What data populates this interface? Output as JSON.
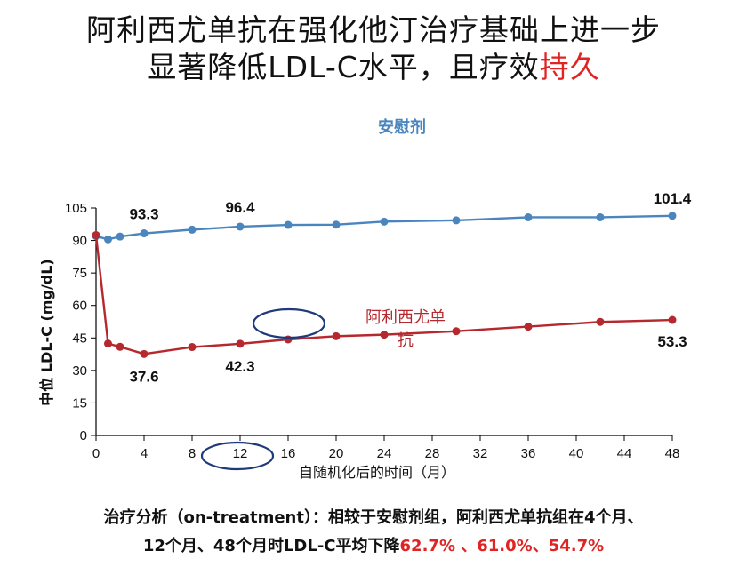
{
  "title": {
    "line1": "阿利西尤单抗在强化他汀治疗基础上进一步",
    "line2_main": "显著降低LDL-C水平，且疗效",
    "line2_accent": "持久"
  },
  "footer": {
    "line1": "治疗分析（on-treatment）：相较于安慰剂组，阿利西尤单抗组在4个月、",
    "line2_main": "12个月、48个月时LDL-C平均下降",
    "line2_values": "62.7% 、61.0%、54.7%"
  },
  "colors": {
    "placebo": "#4a86bd",
    "alirocumab": "#b5282e",
    "accent": "#e02424",
    "ellipse": "#1f3a7a"
  },
  "chart_data": {
    "type": "line",
    "title": "",
    "xlabel": "自随机化后的时间（月）",
    "ylabel": "中位 LDL-C (mg/dL)",
    "xlim": [
      0,
      48
    ],
    "ylim": [
      0,
      105
    ],
    "xticks": [
      0,
      4,
      8,
      12,
      16,
      20,
      24,
      28,
      32,
      36,
      40,
      44,
      48
    ],
    "yticks": [
      0,
      15,
      30,
      45,
      60,
      75,
      90,
      105
    ],
    "grid": false,
    "series": [
      {
        "name": "安慰剂",
        "color": "#4a86bd",
        "points": [
          [
            0,
            92
          ],
          [
            1,
            90.5
          ],
          [
            2,
            91.8
          ],
          [
            4,
            93.3
          ],
          [
            8,
            95
          ],
          [
            12,
            96.4
          ],
          [
            16,
            97.2
          ],
          [
            20,
            97.3
          ],
          [
            24,
            98.7
          ],
          [
            30,
            99.3
          ],
          [
            36,
            100.7
          ],
          [
            42,
            100.7
          ],
          [
            48,
            101.4
          ]
        ],
        "data_labels": [
          {
            "x": 4,
            "y": 93.3,
            "text": "93.3"
          },
          {
            "x": 12,
            "y": 96.4,
            "text": "96.4"
          },
          {
            "x": 48,
            "y": 101.4,
            "text": "101.4"
          }
        ]
      },
      {
        "name": "阿利西尤单抗",
        "color": "#b5282e",
        "points": [
          [
            0,
            92.5
          ],
          [
            1,
            42.4
          ],
          [
            2,
            40.9
          ],
          [
            4,
            37.6
          ],
          [
            8,
            40.8
          ],
          [
            12,
            42.3
          ],
          [
            16,
            44.3
          ],
          [
            20,
            45.8
          ],
          [
            24,
            46.5
          ],
          [
            30,
            48.1
          ],
          [
            36,
            50.2
          ],
          [
            42,
            52.4
          ],
          [
            48,
            53.3
          ]
        ],
        "data_labels": [
          {
            "x": 4,
            "y": 37.6,
            "text": "37.6"
          },
          {
            "x": 12,
            "y": 42.3,
            "text": "42.3"
          },
          {
            "x": 48,
            "y": 53.3,
            "text": "53.3"
          }
        ]
      }
    ]
  }
}
